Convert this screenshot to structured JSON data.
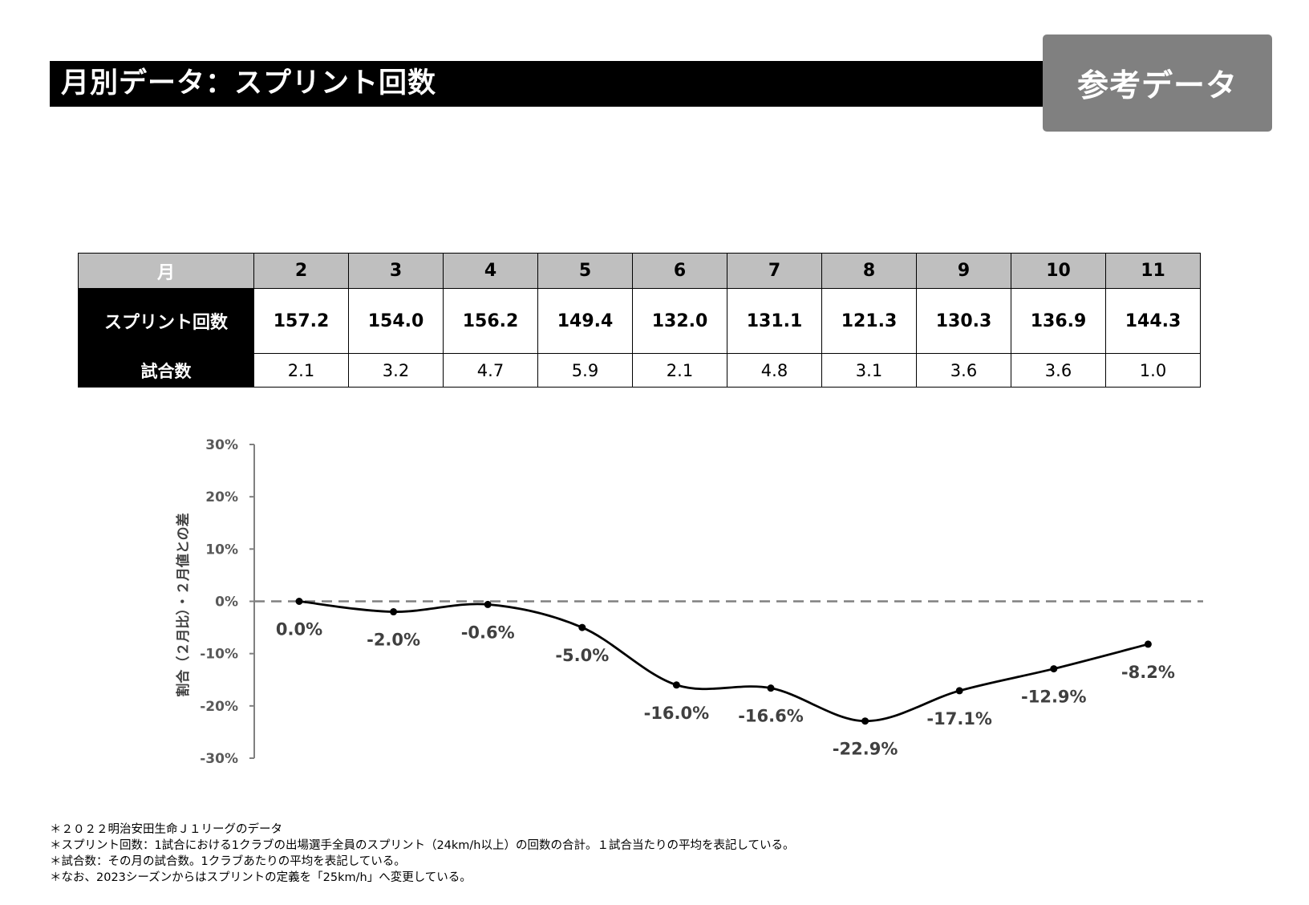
{
  "header": {
    "title": "月別データ：スプリント回数",
    "badge": "参考データ"
  },
  "table": {
    "row_labels": {
      "month": "月",
      "sprint": "スプリント回数",
      "games": "試合数"
    },
    "months": [
      "2",
      "3",
      "4",
      "5",
      "6",
      "7",
      "8",
      "9",
      "10",
      "11"
    ],
    "sprint_counts": [
      "157.2",
      "154.0",
      "156.2",
      "149.4",
      "132.0",
      "131.1",
      "121.3",
      "130.3",
      "136.9",
      "144.3"
    ],
    "games": [
      "2.1",
      "3.2",
      "4.7",
      "5.9",
      "2.1",
      "4.8",
      "3.1",
      "3.6",
      "3.6",
      "1.0"
    ]
  },
  "chart_data": {
    "type": "line",
    "title": "",
    "x": [
      "2",
      "3",
      "4",
      "5",
      "6",
      "7",
      "8",
      "9",
      "10",
      "11"
    ],
    "series": [
      {
        "name": "割合（2月比）・2月値との差",
        "values": [
          0.0,
          -2.0,
          -0.6,
          -5.0,
          -16.0,
          -16.6,
          -22.9,
          -17.1,
          -12.9,
          -8.2
        ]
      }
    ],
    "data_labels": [
      "0.0%",
      "-2.0%",
      "-0.6%",
      "-5.0%",
      "-16.0%",
      "-16.6%",
      "-22.9%",
      "-17.1%",
      "-12.9%",
      "-8.2%"
    ],
    "ylim": [
      -30,
      30
    ],
    "yticks": [
      30,
      20,
      10,
      0,
      -10,
      -20,
      -30
    ],
    "ytick_labels": [
      "30%",
      "20%",
      "10%",
      "0%",
      "-10%",
      "-20%",
      "-30%"
    ],
    "ylabel": "割合（２月比）・２月値との差",
    "xlabel": "",
    "reference_line": 0,
    "colors": {
      "line": "#000000",
      "axis": "#808080",
      "labels": "#404040",
      "reference": "#808080"
    }
  },
  "notes": [
    "＊２０２２明治安田生命Ｊ１リーグのデータ",
    "＊スプリント回数：1試合における1クラブの出場選手全員のスプリント（24km/h以上）の回数の合計。１試合当たりの平均を表記している。",
    "＊試合数：その月の試合数。1クラブあたりの平均を表記している。",
    "＊なお、2023シーズンからはスプリントの定義を「25km/h」へ変更している。"
  ]
}
